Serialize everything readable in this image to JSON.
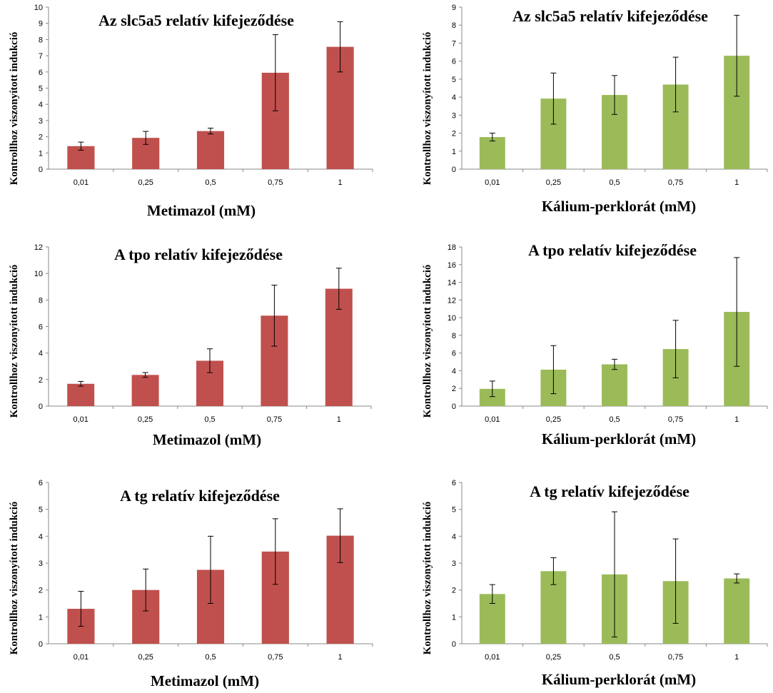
{
  "colors": {
    "methimazole": "#c0504d",
    "perchlorate": "#9bbb59",
    "axis": "#888888"
  },
  "chart_data": [
    {
      "type": "bar",
      "title": "Az slc5a5 relatív kifejeződése",
      "xlabel": "Metimazol (mM)",
      "ylabel": "Kontrollhoz viszonyított indukció",
      "categories": [
        "0,01",
        "0,25",
        "0,5",
        "0,75",
        "1"
      ],
      "series": [
        {
          "values": [
            1.42,
            1.93,
            2.35,
            5.95,
            7.55
          ],
          "errors": [
            0.25,
            0.4,
            0.18,
            2.35,
            1.55
          ]
        }
      ],
      "ylim": [
        0,
        10
      ],
      "yticks": [
        "0",
        "1",
        "2",
        "3",
        "4",
        "5",
        "6",
        "7",
        "8",
        "9",
        "10"
      ],
      "grid": false,
      "color": "#c0504d"
    },
    {
      "type": "bar",
      "title": "Az slc5a5 relatív kifejeződése",
      "xlabel": "Kálium-perklorát (mM)",
      "ylabel": "Kontrollhoz viszonyított indukció",
      "categories": [
        "0,01",
        "0,25",
        "0,5",
        "0,75",
        "1"
      ],
      "series": [
        {
          "values": [
            1.78,
            3.92,
            4.12,
            4.7,
            6.3
          ],
          "errors": [
            0.22,
            1.42,
            1.08,
            1.52,
            2.25
          ]
        }
      ],
      "ylim": [
        0,
        9
      ],
      "yticks": [
        "0",
        "1",
        "2",
        "3",
        "4",
        "5",
        "6",
        "7",
        "8",
        "9"
      ],
      "grid": false,
      "color": "#9bbb59"
    },
    {
      "type": "bar",
      "title": "A tpo relatív kifejeződése",
      "xlabel": "Metimazol (mM)",
      "ylabel": "Kontrollhoz viszonyított indukció",
      "categories": [
        "0,01",
        "0,25",
        "0,5",
        "0,75",
        "1"
      ],
      "series": [
        {
          "values": [
            1.68,
            2.35,
            3.42,
            6.82,
            8.85
          ],
          "errors": [
            0.18,
            0.18,
            0.9,
            2.3,
            1.55
          ]
        }
      ],
      "ylim": [
        0,
        12
      ],
      "yticks": [
        "0",
        "2",
        "4",
        "6",
        "8",
        "10",
        "12"
      ],
      "grid": false,
      "color": "#c0504d"
    },
    {
      "type": "bar",
      "title": "A tpo relatív kifejeződése",
      "xlabel": "Kálium-perklorát (mM)",
      "ylabel": "Kontrollhoz viszonyított indukció",
      "categories": [
        "0,01",
        "0,25",
        "0,5",
        "0,75",
        "1"
      ],
      "series": [
        {
          "values": [
            1.95,
            4.12,
            4.72,
            6.45,
            10.65
          ],
          "errors": [
            0.88,
            2.72,
            0.58,
            3.25,
            6.15
          ]
        }
      ],
      "ylim": [
        0,
        18
      ],
      "yticks": [
        "0",
        "2",
        "4",
        "6",
        "8",
        "10",
        "12",
        "14",
        "16",
        "18"
      ],
      "grid": false,
      "color": "#9bbb59"
    },
    {
      "type": "bar",
      "title": "A tg relatív kifejeződése",
      "xlabel": "Metimazol (mM)",
      "ylabel": "Kontrollhoz viszonyított indukció",
      "categories": [
        "0,01",
        "0,25",
        "0,5",
        "0,75",
        "1"
      ],
      "series": [
        {
          "values": [
            1.3,
            2.0,
            2.75,
            3.43,
            4.02
          ],
          "errors": [
            0.65,
            0.78,
            1.25,
            1.22,
            1.0
          ]
        }
      ],
      "ylim": [
        0,
        6
      ],
      "yticks": [
        "0",
        "1",
        "2",
        "3",
        "4",
        "5",
        "6"
      ],
      "grid": false,
      "color": "#c0504d"
    },
    {
      "type": "bar",
      "title": "A tg relatív kifejeződése",
      "xlabel": "Kálium-perklorát (mM)",
      "ylabel": "Kontrollhoz viszonyított indukció",
      "categories": [
        "0,01",
        "0,25",
        "0,5",
        "0,75",
        "1"
      ],
      "series": [
        {
          "values": [
            1.85,
            2.7,
            2.58,
            2.33,
            2.43
          ],
          "errors": [
            0.35,
            0.5,
            2.33,
            1.57,
            0.17
          ]
        }
      ],
      "ylim": [
        0,
        6
      ],
      "yticks": [
        "0",
        "1",
        "2",
        "3",
        "4",
        "5",
        "6"
      ],
      "grid": false,
      "color": "#9bbb59"
    }
  ]
}
